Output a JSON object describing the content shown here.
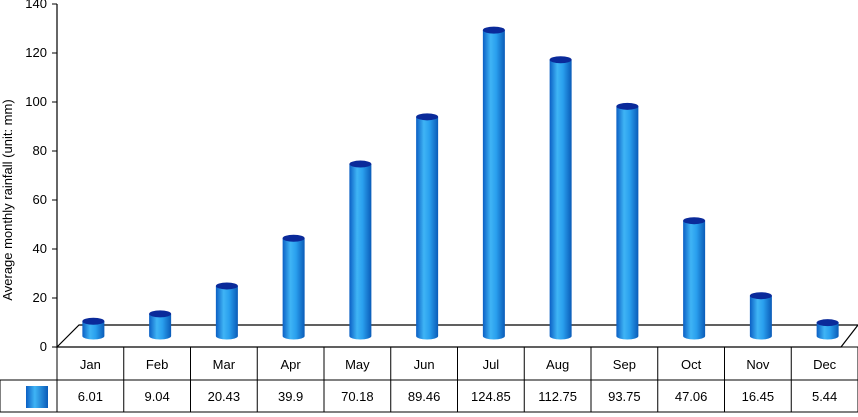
{
  "chart_data": {
    "type": "bar",
    "title": "",
    "xlabel": "",
    "ylabel": "Average monthly rainfall (unit: mm)",
    "ylim": [
      0,
      140
    ],
    "yticks": [
      0,
      20,
      40,
      60,
      80,
      100,
      120,
      140
    ],
    "categories": [
      "Jan",
      "Feb",
      "Mar",
      "Apr",
      "May",
      "Jun",
      "Jul",
      "Aug",
      "Sep",
      "Oct",
      "Nov",
      "Dec"
    ],
    "series": [
      {
        "values": [
          6.01,
          9.04,
          20.43,
          39.9,
          70.18,
          89.46,
          124.85,
          112.75,
          93.75,
          47.06,
          16.45,
          5.44
        ]
      }
    ],
    "grid": false,
    "legend": "data table (bottom)",
    "colors": {
      "bar": "#1a8fe3",
      "bar_top": "#0a2a9a",
      "axis": "#000000"
    }
  }
}
